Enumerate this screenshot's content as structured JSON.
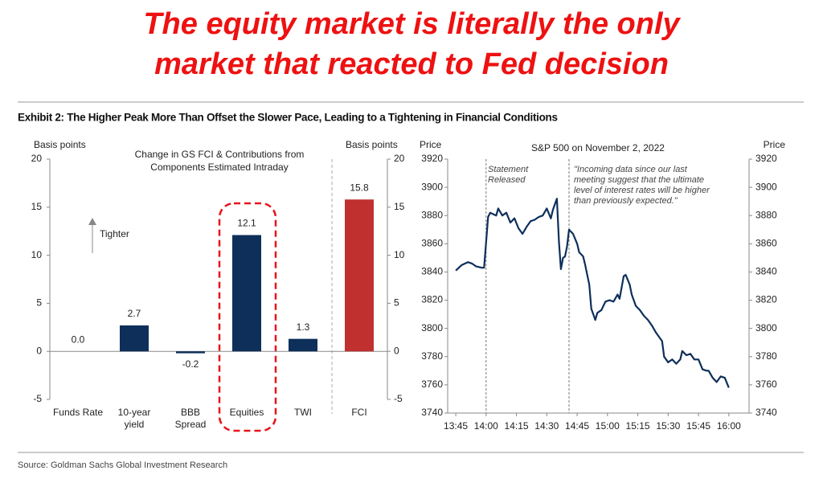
{
  "headline": [
    "The equity market is literally the only",
    "market that reacted to Fed decision"
  ],
  "exhibit_title": "Exhibit 2: The Higher Peak More Than Offset the Slower Pace, Leading to a Tightening in Financial Conditions",
  "source": "Source: Goldman Sachs Global Investment Research",
  "chart_data": [
    {
      "type": "bar",
      "title": "Change in GS FCI & Contributions from\nComponents  Estimated Intraday",
      "y_label": "Basis points",
      "y2_label": "Basis points",
      "annotation": "Tighter",
      "categories": [
        "Funds Rate",
        "10-year\nyield",
        "BBB\nSpread",
        "Equities",
        "TWI",
        "FCI"
      ],
      "values": [
        0.0,
        2.7,
        -0.2,
        12.1,
        1.3,
        15.8
      ],
      "value_labels": [
        "0.0",
        "2.7",
        "-0.2",
        "12.1",
        "1.3",
        "15.8"
      ],
      "colors": [
        "#0d2f5a",
        "#0d2f5a",
        "#0d2f5a",
        "#0d2f5a",
        "#0d2f5a",
        "#c0302f"
      ],
      "ylim": [
        -5,
        20
      ],
      "yticks": [
        -5,
        0,
        5,
        10,
        15,
        20
      ],
      "y2lim": [
        -5,
        20
      ],
      "y2ticks": [
        -5,
        0,
        5,
        10,
        15,
        20
      ]
    },
    {
      "type": "line",
      "title": "S&P 500 on November 2, 2022",
      "y_label": "Price",
      "y2_label": "Price",
      "annotations": [
        "Statement\nReleased",
        "\"Incoming data since our last\nmeeting suggest that the ultimate\nlevel of interest rates will be higher\nthan previously expected.\""
      ],
      "vlines": [
        840,
        881
      ],
      "color": "#0d2f5a",
      "x": [
        825,
        828,
        831,
        833,
        835,
        838,
        839,
        841,
        842,
        845,
        846,
        848,
        850,
        852,
        854,
        856,
        858,
        860,
        862,
        864,
        866,
        868,
        870,
        872,
        873,
        875,
        876,
        877,
        878,
        879,
        880,
        881,
        883,
        885,
        886,
        888,
        889,
        891,
        892,
        894,
        895,
        897,
        899,
        901,
        903,
        905,
        906,
        908,
        909,
        911,
        912,
        914,
        916,
        918,
        920,
        922,
        924,
        927,
        928,
        930,
        932,
        934,
        936,
        937,
        939,
        941,
        943,
        945,
        947,
        949,
        950,
        952,
        954,
        956,
        958,
        960
      ],
      "values": [
        3841,
        3845,
        3847,
        3846,
        3844,
        3843,
        3843,
        3879,
        3882,
        3880,
        3885,
        3880,
        3882,
        3875,
        3878,
        3871,
        3867,
        3872,
        3876,
        3877,
        3879,
        3880,
        3885,
        3878,
        3884,
        3892,
        3862,
        3842,
        3850,
        3851,
        3858,
        3870,
        3867,
        3860,
        3854,
        3851,
        3845,
        3831,
        3814,
        3806,
        3811,
        3813,
        3819,
        3820,
        3819,
        3824,
        3821,
        3837,
        3838,
        3831,
        3824,
        3816,
        3813,
        3809,
        3806,
        3802,
        3797,
        3791,
        3780,
        3776,
        3778,
        3775,
        3778,
        3784,
        3781,
        3782,
        3778,
        3778,
        3771,
        3770,
        3770,
        3765,
        3762,
        3766,
        3765,
        3758
      ],
      "xlim": [
        821,
        970
      ],
      "xticks": [
        {
          "value": 825,
          "label": "13:45"
        },
        {
          "value": 840,
          "label": "14:00"
        },
        {
          "value": 855,
          "label": "14:15"
        },
        {
          "value": 870,
          "label": "14:30"
        },
        {
          "value": 885,
          "label": "14:45"
        },
        {
          "value": 900,
          "label": "15:00"
        },
        {
          "value": 915,
          "label": "15:15"
        },
        {
          "value": 930,
          "label": "15:30"
        },
        {
          "value": 945,
          "label": "15:45"
        },
        {
          "value": 960,
          "label": "16:00"
        }
      ],
      "ylim": [
        3740,
        3920
      ],
      "yticks": [
        3740,
        3760,
        3780,
        3800,
        3820,
        3840,
        3860,
        3880,
        3900,
        3920
      ],
      "y2lim": [
        3740,
        3920
      ],
      "y2ticks": [
        3740,
        3760,
        3780,
        3800,
        3820,
        3840,
        3860,
        3880,
        3900,
        3920
      ]
    }
  ]
}
